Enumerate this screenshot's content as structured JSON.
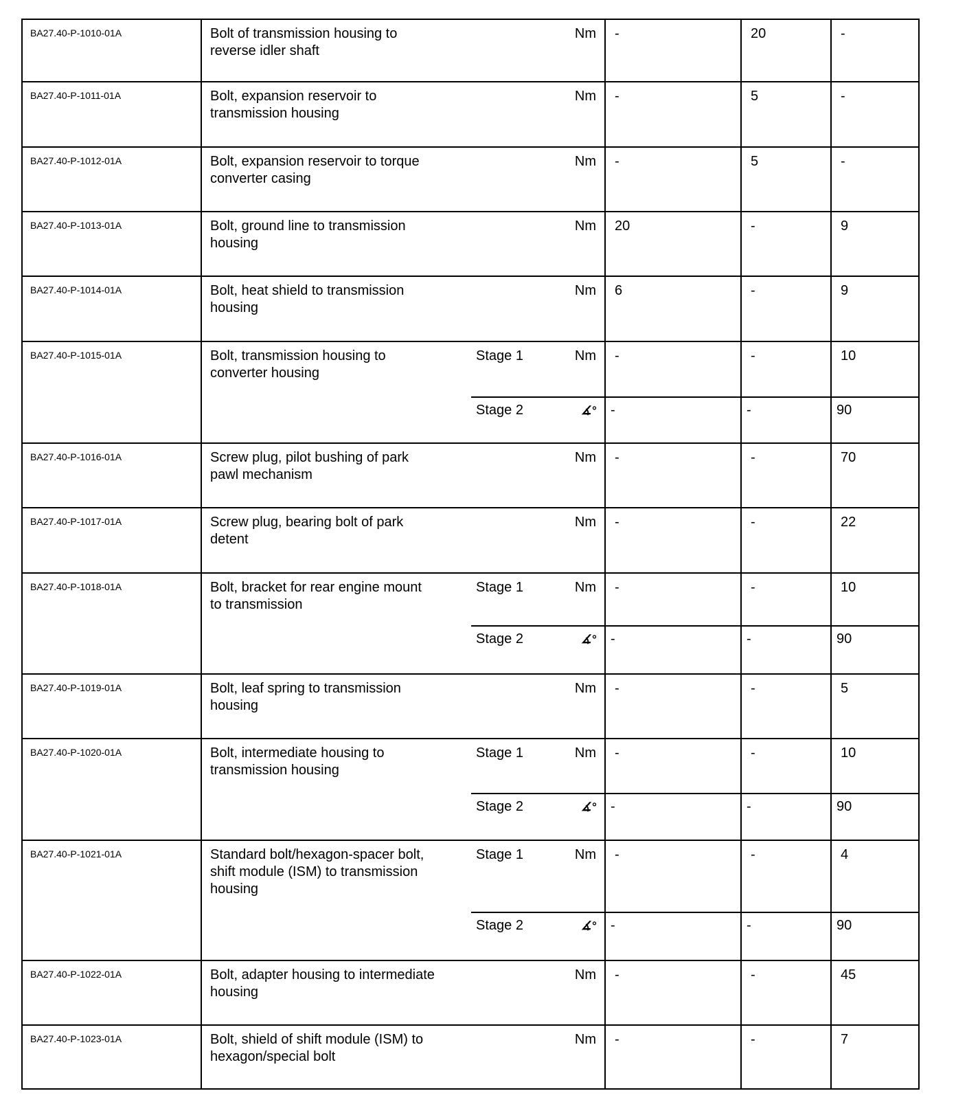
{
  "table": {
    "rows": [
      {
        "id": "BA27.40-P-1010-01A",
        "desc": "Bolt of transmission housing to\nreverse idler shaft",
        "stages": [
          {
            "stage": "",
            "unit": "Nm",
            "values": [
              "-",
              "20",
              "-"
            ]
          }
        ]
      },
      {
        "id": "BA27.40-P-1011-01A",
        "desc": "Bolt, expansion reservoir to\ntransmission housing",
        "stages": [
          {
            "stage": "",
            "unit": "Nm",
            "values": [
              "-",
              "5",
              "-"
            ]
          }
        ]
      },
      {
        "id": "BA27.40-P-1012-01A",
        "desc": "Bolt, expansion reservoir to torque\nconverter casing",
        "stages": [
          {
            "stage": "",
            "unit": "Nm",
            "values": [
              "-",
              "5",
              "-"
            ]
          }
        ]
      },
      {
        "id": "BA27.40-P-1013-01A",
        "desc": "Bolt, ground line to transmission\nhousing",
        "stages": [
          {
            "stage": "",
            "unit": "Nm",
            "values": [
              "20",
              "-",
              "9"
            ]
          }
        ]
      },
      {
        "id": "BA27.40-P-1014-01A",
        "desc": "Bolt, heat shield to transmission\nhousing",
        "stages": [
          {
            "stage": "",
            "unit": "Nm",
            "values": [
              "6",
              "-",
              "9"
            ]
          }
        ]
      },
      {
        "id": "BA27.40-P-1015-01A",
        "desc": "Bolt, transmission housing to\nconverter housing",
        "stages": [
          {
            "stage": "Stage 1",
            "unit": "Nm",
            "values": [
              "-",
              "-",
              "10"
            ]
          },
          {
            "stage": "Stage 2",
            "unit": "∡°",
            "values": [
              "-",
              "-",
              "90"
            ]
          }
        ]
      },
      {
        "id": "BA27.40-P-1016-01A",
        "desc": "Screw plug, pilot bushing of park\npawl mechanism",
        "stages": [
          {
            "stage": "",
            "unit": "Nm",
            "values": [
              "-",
              "-",
              "70"
            ]
          }
        ]
      },
      {
        "id": "BA27.40-P-1017-01A",
        "desc": "Screw plug, bearing bolt of park\ndetent",
        "stages": [
          {
            "stage": "",
            "unit": "Nm",
            "values": [
              "-",
              "-",
              "22"
            ]
          }
        ]
      },
      {
        "id": "BA27.40-P-1018-01A",
        "desc": "Bolt, bracket for rear engine mount\nto transmission",
        "stages": [
          {
            "stage": "Stage 1",
            "unit": "Nm",
            "values": [
              "-",
              "-",
              "10"
            ]
          },
          {
            "stage": "Stage 2",
            "unit": "∡°",
            "values": [
              "-",
              "-",
              "90"
            ]
          }
        ]
      },
      {
        "id": "BA27.40-P-1019-01A",
        "desc": "Bolt, leaf spring to transmission\nhousing",
        "stages": [
          {
            "stage": "",
            "unit": "Nm",
            "values": [
              "-",
              "-",
              "5"
            ]
          }
        ]
      },
      {
        "id": "BA27.40-P-1020-01A",
        "desc": "Bolt, intermediate housing to\ntransmission housing",
        "stages": [
          {
            "stage": "Stage 1",
            "unit": "Nm",
            "values": [
              "-",
              "-",
              "10"
            ]
          },
          {
            "stage": "Stage 2",
            "unit": "∡°",
            "values": [
              "-",
              "-",
              "90"
            ]
          }
        ]
      },
      {
        "id": "BA27.40-P-1021-01A",
        "desc": "Standard bolt/hexagon-spacer bolt,\nshift module (ISM) to transmission\nhousing",
        "stages": [
          {
            "stage": "Stage 1",
            "unit": "Nm",
            "values": [
              "-",
              "-",
              "4"
            ]
          },
          {
            "stage": "Stage 2",
            "unit": "∡°",
            "values": [
              "-",
              "-",
              "90"
            ]
          }
        ]
      },
      {
        "id": "BA27.40-P-1022-01A",
        "desc": "Bolt, adapter housing to intermediate\nhousing",
        "stages": [
          {
            "stage": "",
            "unit": "Nm",
            "values": [
              "-",
              "-",
              "45"
            ]
          }
        ]
      },
      {
        "id": "BA27.40-P-1023-01A",
        "desc": "Bolt, shield of shift module (ISM) to\nhexagon/special bolt",
        "stages": [
          {
            "stage": "",
            "unit": "Nm",
            "values": [
              "-",
              "-",
              "7"
            ]
          }
        ]
      }
    ]
  }
}
